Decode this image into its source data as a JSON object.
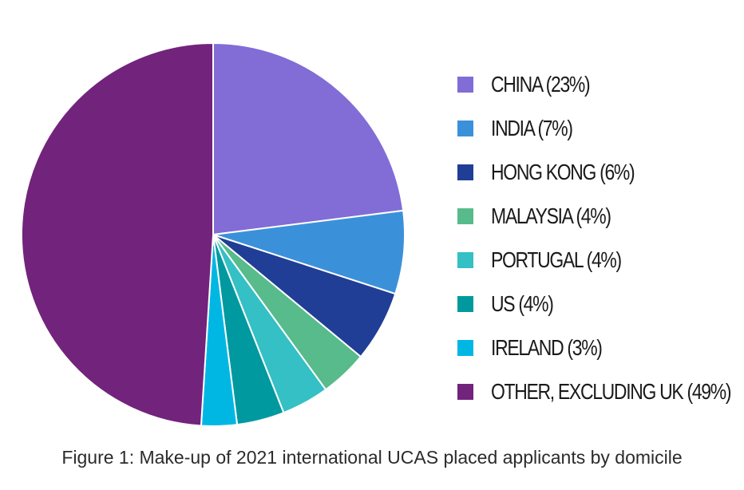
{
  "chart_data": {
    "type": "pie",
    "title": "",
    "caption": "Figure 1: Make-up of 2021 international UCAS placed applicants by domicile",
    "legend_position": "right",
    "start_angle": "12 o'clock",
    "direction": "clockwise",
    "slices": [
      {
        "label": "CHINA (23%)",
        "value": 23,
        "color": "#826cd6"
      },
      {
        "label": "INDIA (7%)",
        "value": 7,
        "color": "#3b91d9"
      },
      {
        "label": "HONG KONG (6%)",
        "value": 6,
        "color": "#213e96"
      },
      {
        "label": "MALAYSIA (4%)",
        "value": 4,
        "color": "#57bb8c"
      },
      {
        "label": "PORTUGAL (4%)",
        "value": 4,
        "color": "#34c0c4"
      },
      {
        "label": "US (4%)",
        "value": 4,
        "color": "#00999f"
      },
      {
        "label": "IRELAND (3%)",
        "value": 3,
        "color": "#00b7e4"
      },
      {
        "label": "OTHER, EXCLUDING UK (49%)",
        "value": 49,
        "color": "#72237c"
      }
    ]
  }
}
